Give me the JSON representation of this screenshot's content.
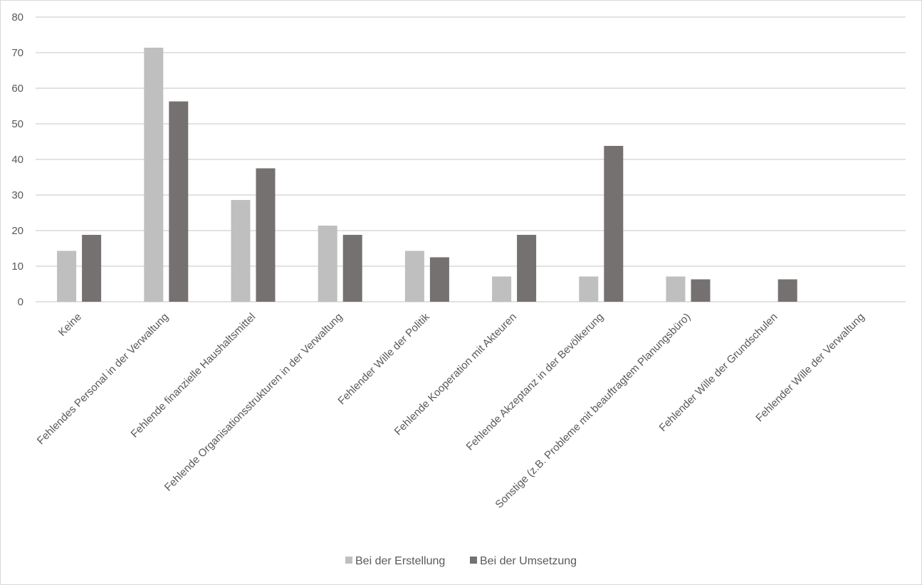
{
  "chart_data": {
    "type": "bar",
    "categories": [
      "Keine",
      "Fehlendes Personal in der Verwaltung",
      "Fehlende finanzielle Haushaltsmittel",
      "Fehlende Organisationsstrukturen in der Verwaltung",
      "Fehlender Wille der Politik",
      "Fehlende Kooperation mit Akteuren",
      "Fehlende Akzeptanz in der Bevölkerung",
      "Sonstige (z.B. Probleme mit beauftragtem Planungsbüro)",
      "Fehlender Wille der Grundschulen",
      "Fehlender Wille der Verwaltung"
    ],
    "series": [
      {
        "name": "Bei der Erstellung",
        "color": "#bfbfbf",
        "values": [
          14.3,
          71.4,
          28.6,
          21.4,
          14.3,
          7.1,
          7.1,
          7.1,
          0,
          0
        ]
      },
      {
        "name": "Bei der Umsetzung",
        "color": "#767171",
        "values": [
          18.8,
          56.3,
          37.5,
          18.8,
          12.5,
          18.8,
          43.8,
          6.3,
          6.3,
          0
        ]
      }
    ],
    "ylim": [
      0,
      80
    ],
    "yticks": [
      0,
      10,
      20,
      30,
      40,
      50,
      60,
      70,
      80
    ],
    "grid": true,
    "legend": "bottom",
    "title": "",
    "xlabel": "",
    "ylabel": ""
  }
}
